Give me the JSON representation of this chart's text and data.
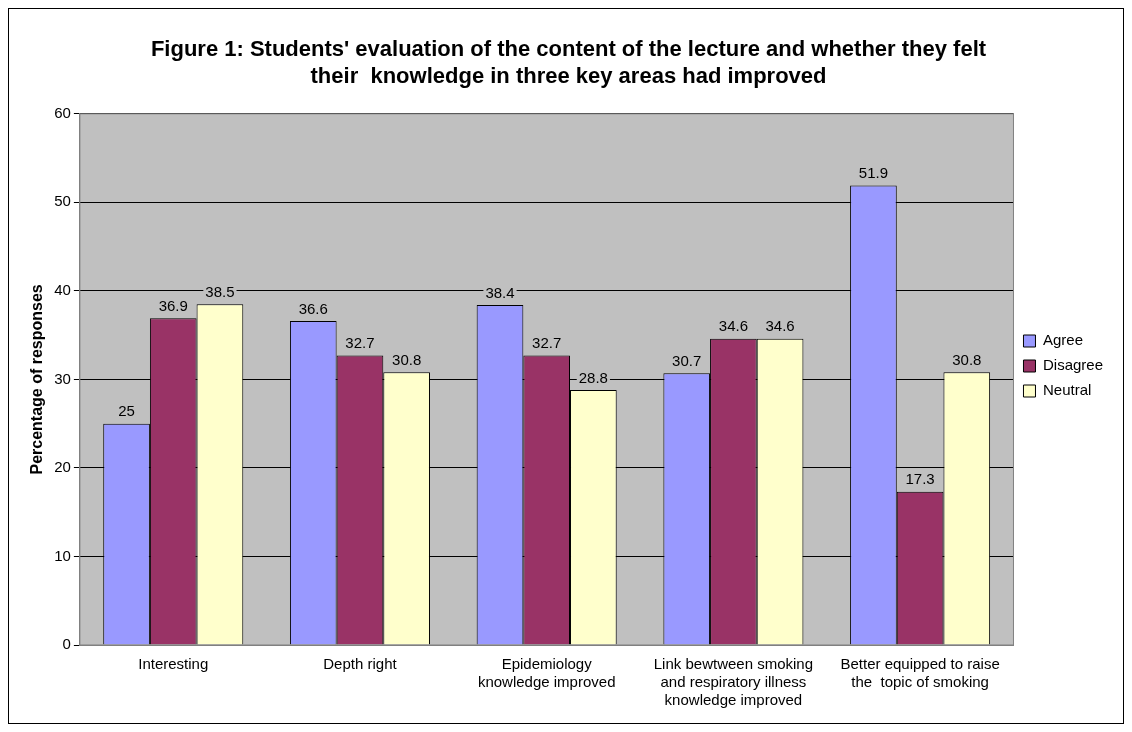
{
  "chart_data": {
    "type": "bar",
    "title": "Figure 1: Students' evaluation of the content of the lecture and whether they felt their  knowledge in three key areas had improved",
    "ylabel": "Percentage of responses",
    "categories": [
      "Interesting",
      "Depth right",
      "Epidemiology knowledge improved",
      "Link bewtween smoking and respiratory illness knowledge improved",
      "Better equipped to raise the  topic of smoking"
    ],
    "series": [
      {
        "name": "Agree",
        "color": "#9999ff",
        "values": [
          25,
          36.6,
          38.4,
          30.7,
          51.9
        ]
      },
      {
        "name": "Disagree",
        "color": "#993366",
        "values": [
          36.9,
          32.7,
          32.7,
          34.6,
          17.3
        ]
      },
      {
        "name": "Neutral",
        "color": "#ffffcc",
        "values": [
          38.5,
          30.8,
          28.8,
          34.6,
          30.8
        ]
      }
    ],
    "ylim": [
      0,
      60
    ],
    "yticks": [
      0,
      10,
      20,
      30,
      40,
      50,
      60
    ],
    "grid": "y",
    "legend": "right",
    "data_labels": true
  }
}
